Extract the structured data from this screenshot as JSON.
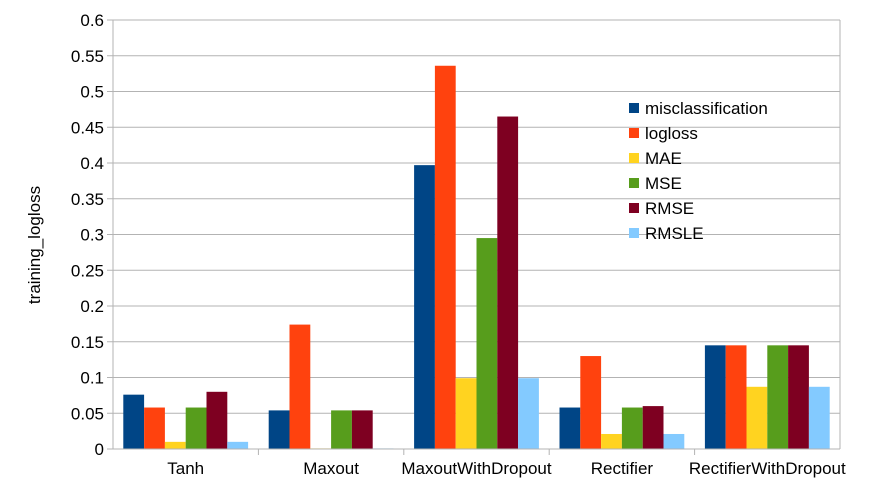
{
  "chart_data": {
    "type": "bar",
    "ylabel": "training_logloss",
    "ylim": [
      0,
      0.6
    ],
    "yticks": [
      "0",
      "0.05",
      "0.1",
      "0.15",
      "0.2",
      "0.25",
      "0.3",
      "0.35",
      "0.4",
      "0.45",
      "0.5",
      "0.55",
      "0.6"
    ],
    "grid": true,
    "legend_position": "right",
    "categories": [
      "Tanh",
      "Maxout",
      "MaxoutWithDropout",
      "Rectifier",
      "RectifierWithDropout"
    ],
    "series": [
      {
        "name": "misclassification",
        "color": "#004586",
        "values": [
          0.076,
          0.054,
          0.397,
          0.058,
          0.145
        ]
      },
      {
        "name": "logloss",
        "color": "#ff420e",
        "values": [
          0.058,
          0.174,
          0.536,
          0.13,
          0.145
        ]
      },
      {
        "name": "MAE",
        "color": "#ffd320",
        "values": [
          0.01,
          0.0005,
          0.099,
          0.021,
          0.087
        ]
      },
      {
        "name": "MSE",
        "color": "#579d1c",
        "values": [
          0.058,
          0.054,
          0.295,
          0.058,
          0.145
        ]
      },
      {
        "name": "RMSE",
        "color": "#7e0021",
        "values": [
          0.08,
          0.054,
          0.465,
          0.06,
          0.145
        ]
      },
      {
        "name": "RMSLE",
        "color": "#83caff",
        "values": [
          0.01,
          0.0005,
          0.099,
          0.021,
          0.087
        ]
      }
    ]
  }
}
